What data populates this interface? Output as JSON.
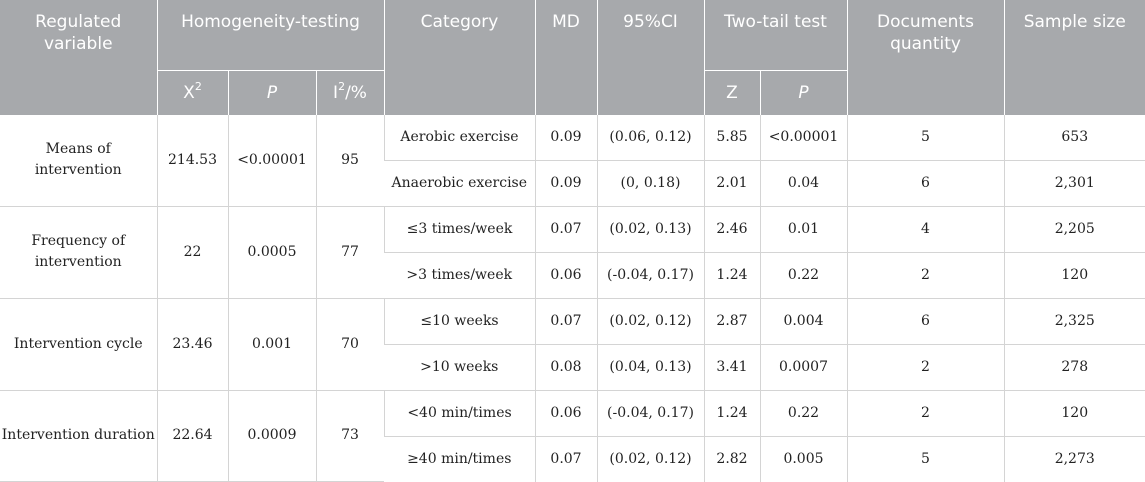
{
  "header": {
    "regulated_variable": "Regulated variable",
    "homogeneity_testing": "Homogeneity-testing",
    "chi2_base": "X",
    "chi2_sup": "2",
    "p_label": "P",
    "i2_base": "I",
    "i2_sup": "2",
    "i2_suffix": "/%",
    "category": "Category",
    "md": "MD",
    "ci": "95%CI",
    "two_tail_test": "Two-tail test",
    "z_label": "Z",
    "p2_label": "P",
    "documents_quantity": "Documents quantity",
    "sample_size": "Sample size"
  },
  "groups": [
    {
      "variable": "Means of intervention",
      "chi2": "214.53",
      "p": "<0.00001",
      "i2": "95",
      "rows": [
        {
          "category": "Aerobic exercise",
          "md": "0.09",
          "ci": "(0.06, 0.12)",
          "z": "5.85",
          "p": "<0.00001",
          "docs": "5",
          "sample": "653"
        },
        {
          "category": "Anaerobic exercise",
          "md": "0.09",
          "ci": "(0, 0.18)",
          "z": "2.01",
          "p": "0.04",
          "docs": "6",
          "sample": "2,301"
        }
      ]
    },
    {
      "variable": "Frequency of intervention",
      "chi2": "22",
      "p": "0.0005",
      "i2": "77",
      "rows": [
        {
          "category": "≤3 times/week",
          "md": "0.07",
          "ci": "(0.02, 0.13)",
          "z": "2.46",
          "p": "0.01",
          "docs": "4",
          "sample": "2,205"
        },
        {
          "category": ">3 times/week",
          "md": "0.06",
          "ci": "(-0.04, 0.17)",
          "z": "1.24",
          "p": "0.22",
          "docs": "2",
          "sample": "120"
        }
      ]
    },
    {
      "variable": "Intervention cycle",
      "chi2": "23.46",
      "p": "0.001",
      "i2": "70",
      "rows": [
        {
          "category": "≤10 weeks",
          "md": "0.07",
          "ci": "(0.02, 0.12)",
          "z": "2.87",
          "p": "0.004",
          "docs": "6",
          "sample": "2,325"
        },
        {
          "category": ">10 weeks",
          "md": "0.08",
          "ci": "(0.04, 0.13)",
          "z": "3.41",
          "p": "0.0007",
          "docs": "2",
          "sample": "278"
        }
      ]
    },
    {
      "variable": "Intervention duration",
      "chi2": "22.64",
      "p": "0.0009",
      "i2": "73",
      "rows": [
        {
          "category": "<40 min/times",
          "md": "0.06",
          "ci": "(-0.04, 0.17)",
          "z": "1.24",
          "p": "0.22",
          "docs": "2",
          "sample": "120"
        },
        {
          "category": "≥40 min/times",
          "md": "0.07",
          "ci": "(0.02, 0.12)",
          "z": "2.82",
          "p": "0.005",
          "docs": "5",
          "sample": "2,273"
        }
      ]
    }
  ]
}
